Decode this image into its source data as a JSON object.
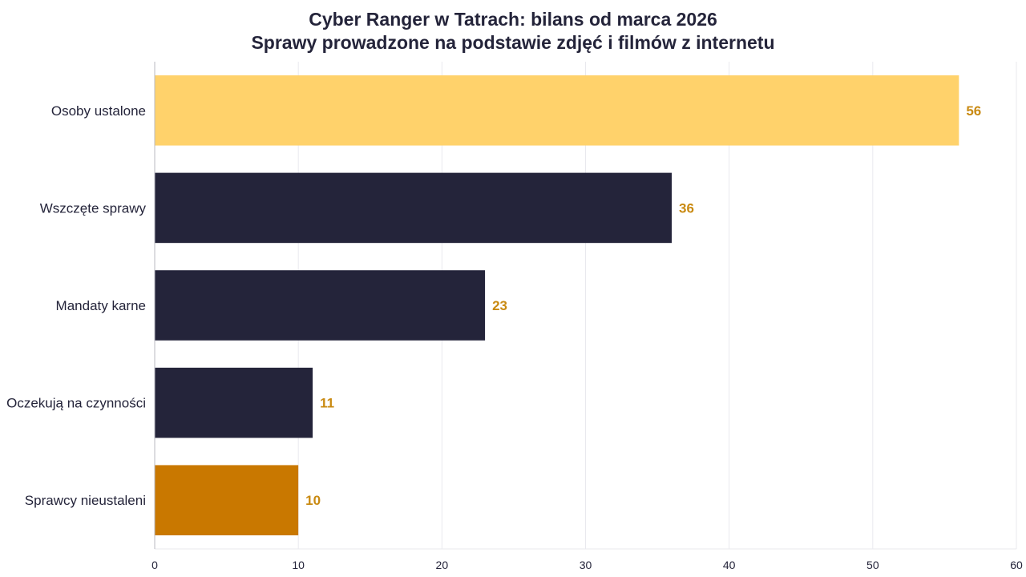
{
  "chart_data": {
    "type": "bar",
    "orientation": "horizontal",
    "title": "Cyber Ranger w Tatrach: bilans od marca 2026",
    "subtitle": "Sprawy prowadzone na podstawie zdjęć i filmów z internetu",
    "xlabel": "",
    "ylabel": "",
    "xlim": [
      0,
      60
    ],
    "xticks": [
      0,
      10,
      20,
      30,
      40,
      50,
      60
    ],
    "grid": "vertical",
    "legend": "none",
    "categories": [
      "Osoby ustalone",
      "Wszczęte sprawy",
      "Mandaty karne",
      "Oczekują na czynności",
      "Sprawcy nieustaleni"
    ],
    "values": [
      56,
      36,
      23,
      11,
      10
    ],
    "bar_colors": [
      "#ffd26b",
      "#24243a",
      "#24243a",
      "#24243a",
      "#c97800"
    ],
    "value_label_color": "#c98a12"
  }
}
